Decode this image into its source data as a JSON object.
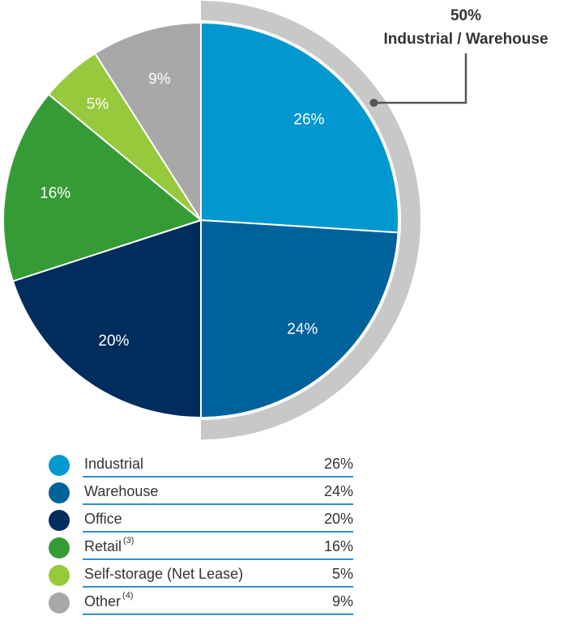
{
  "chart_data": {
    "type": "pie",
    "categories": [
      "Industrial",
      "Warehouse",
      "Office",
      "Retail",
      "Self-storage (Net Lease)",
      "Other"
    ],
    "values": [
      26,
      24,
      20,
      16,
      5,
      9
    ],
    "slice_labels": [
      "26%",
      "24%",
      "20%",
      "16%",
      "5%",
      "9%"
    ],
    "colors": [
      "#0098cf",
      "#00629b",
      "#002d5d",
      "#359c35",
      "#97c93c",
      "#a8a8a8"
    ],
    "callout": {
      "value": "50%",
      "label": "Industrial / Warehouse",
      "groups": [
        "Industrial",
        "Warehouse"
      ],
      "ring_color": "#c8c8c8",
      "line_color": "#555555"
    },
    "legend": [
      {
        "name": "Industrial",
        "note": "",
        "value": "26%",
        "color": "#0098cf"
      },
      {
        "name": "Warehouse",
        "note": "",
        "value": "24%",
        "color": "#00629b"
      },
      {
        "name": "Office",
        "note": "",
        "value": "20%",
        "color": "#002d5d"
      },
      {
        "name": "Retail",
        "note": "(3)",
        "value": "16%",
        "color": "#359c35"
      },
      {
        "name": "Self-storage (Net Lease)",
        "note": "",
        "value": "5%",
        "color": "#97c93c"
      },
      {
        "name": "Other",
        "note": "(4)",
        "value": "9%",
        "color": "#a8a8a8"
      }
    ],
    "legend_rule_color": "#2f8fc9"
  }
}
